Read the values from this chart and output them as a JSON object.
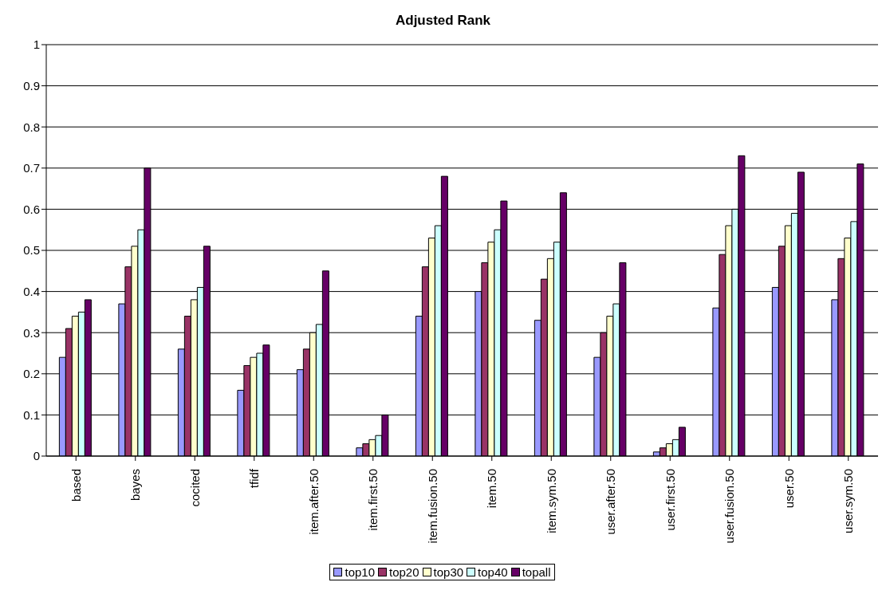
{
  "chart_data": {
    "type": "bar",
    "title": "Adjusted Rank",
    "categories": [
      "based",
      "bayes",
      "cocited",
      "tfidf",
      "item.after.50",
      "item.first.50",
      "item.fusion.50",
      "item.50",
      "item.sym.50",
      "user.after.50",
      "user.first.50",
      "user.fusion.50",
      "user.50",
      "user.sym.50"
    ],
    "series": [
      {
        "name": "top10",
        "color": "#9999ff",
        "values": [
          0.24,
          0.37,
          0.26,
          0.16,
          0.21,
          0.02,
          0.34,
          0.4,
          0.33,
          0.24,
          0.01,
          0.36,
          0.41,
          0.38
        ]
      },
      {
        "name": "top20",
        "color": "#993366",
        "values": [
          0.31,
          0.46,
          0.34,
          0.22,
          0.26,
          0.03,
          0.46,
          0.47,
          0.43,
          0.3,
          0.02,
          0.49,
          0.51,
          0.48
        ]
      },
      {
        "name": "top30",
        "color": "#ffffcc",
        "values": [
          0.34,
          0.51,
          0.38,
          0.24,
          0.3,
          0.04,
          0.53,
          0.52,
          0.48,
          0.34,
          0.03,
          0.56,
          0.56,
          0.53
        ]
      },
      {
        "name": "top40",
        "color": "#ccffff",
        "values": [
          0.35,
          0.55,
          0.41,
          0.25,
          0.32,
          0.05,
          0.56,
          0.55,
          0.52,
          0.37,
          0.04,
          0.6,
          0.59,
          0.57
        ]
      },
      {
        "name": "topall",
        "color": "#660066",
        "values": [
          0.38,
          0.7,
          0.51,
          0.27,
          0.45,
          0.1,
          0.68,
          0.62,
          0.64,
          0.47,
          0.07,
          0.73,
          0.69,
          0.71
        ]
      }
    ],
    "ylim": [
      0,
      1
    ],
    "yticks": [
      0,
      0.1,
      0.2,
      0.3,
      0.4,
      0.5,
      0.6,
      0.7,
      0.8,
      0.9,
      1
    ],
    "grid": "y",
    "legend": "bottom"
  }
}
